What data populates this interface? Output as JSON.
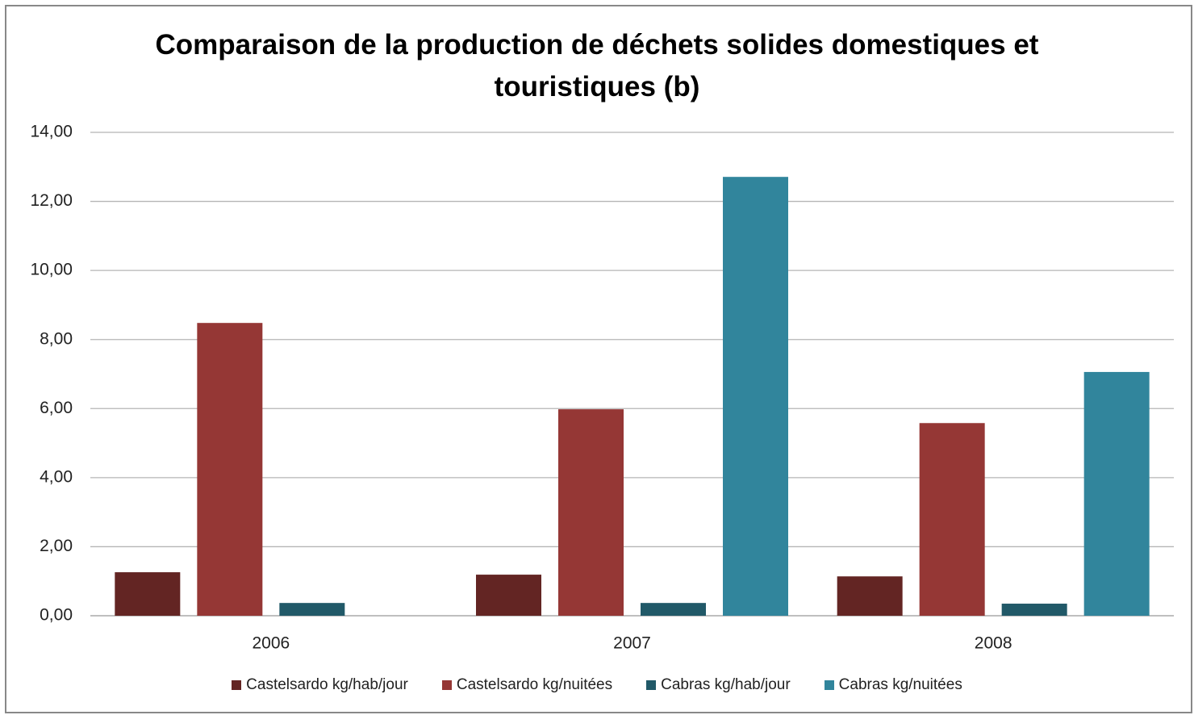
{
  "chart_data": {
    "type": "bar",
    "title": "Comparaison de la production de déchets solides domestiques et touristiques (b)",
    "categories": [
      "2006",
      "2007",
      "2008"
    ],
    "series": [
      {
        "name": "Castelsardo kg/hab/jour",
        "color": "#632523",
        "values": [
          1.26,
          1.19,
          1.14
        ]
      },
      {
        "name": "Castelsardo kg/nuitées",
        "color": "#953735",
        "values": [
          8.48,
          5.98,
          5.58
        ]
      },
      {
        "name": "Cabras kg/hab/jour",
        "color": "#215968",
        "values": [
          0.37,
          0.37,
          0.35
        ]
      },
      {
        "name": "Cabras kg/nuitées",
        "color": "#31859c",
        "values": [
          null,
          12.71,
          7.06
        ]
      }
    ],
    "ylim": [
      0,
      14
    ],
    "yticks": [
      {
        "value": 0,
        "label": "0,00"
      },
      {
        "value": 2,
        "label": "2,00"
      },
      {
        "value": 4,
        "label": "4,00"
      },
      {
        "value": 6,
        "label": "6,00"
      },
      {
        "value": 8,
        "label": "8,00"
      },
      {
        "value": 10,
        "label": "10,00"
      },
      {
        "value": 12,
        "label": "12,00"
      },
      {
        "value": 14,
        "label": "14,00"
      }
    ],
    "grid": true,
    "legend": "bottom"
  }
}
